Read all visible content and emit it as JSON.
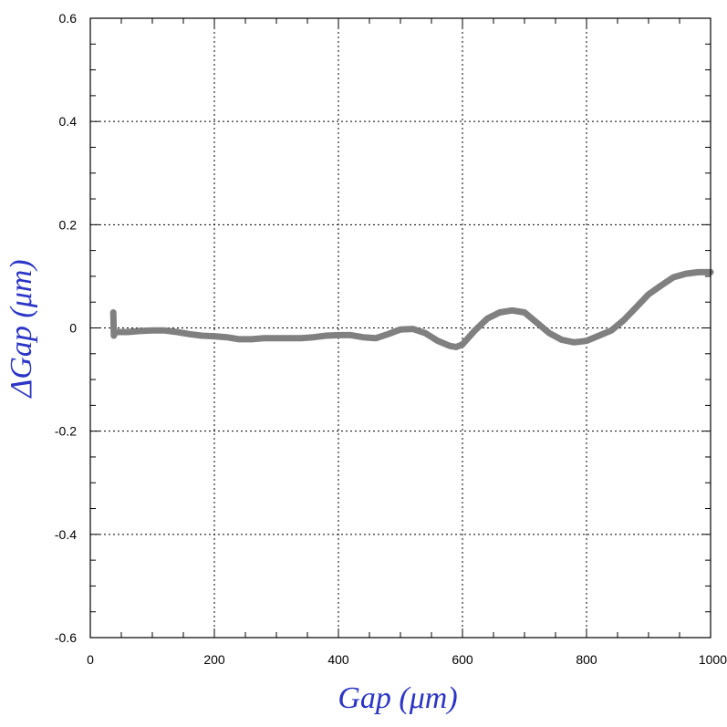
{
  "chart_data": {
    "type": "line",
    "xlabel": "Gap  (μm)",
    "ylabel": "ΔGap  (μm)",
    "xlim": [
      0,
      1000
    ],
    "ylim": [
      -0.6,
      0.6
    ],
    "xticks": [
      0,
      200,
      400,
      600,
      800,
      1000
    ],
    "yticks": [
      -0.6,
      -0.4,
      -0.2,
      0,
      0.2,
      0.4,
      0.6
    ],
    "x_tick_labels": [
      "0",
      "200",
      "400",
      "600",
      "800",
      "1000"
    ],
    "y_tick_labels": [
      "-0.6",
      "-0.4",
      "-0.2",
      "0",
      "0.2",
      "0.4",
      "0.6"
    ],
    "grid": true,
    "series": [
      {
        "color": "#808080",
        "x": [
          37,
          38,
          40,
          60,
          80,
          100,
          120,
          140,
          160,
          180,
          200,
          220,
          240,
          260,
          280,
          300,
          320,
          340,
          360,
          380,
          400,
          420,
          440,
          460,
          480,
          500,
          520,
          540,
          560,
          580,
          590,
          600,
          620,
          640,
          660,
          680,
          700,
          720,
          740,
          760,
          780,
          800,
          820,
          840,
          860,
          880,
          900,
          920,
          940,
          960,
          980,
          1000
        ],
        "y": [
          0.03,
          -0.015,
          -0.008,
          -0.008,
          -0.006,
          -0.005,
          -0.005,
          -0.008,
          -0.012,
          -0.015,
          -0.016,
          -0.018,
          -0.022,
          -0.022,
          -0.02,
          -0.02,
          -0.02,
          -0.02,
          -0.018,
          -0.015,
          -0.014,
          -0.014,
          -0.018,
          -0.02,
          -0.012,
          -0.003,
          -0.002,
          -0.01,
          -0.025,
          -0.035,
          -0.037,
          -0.032,
          -0.005,
          0.018,
          0.03,
          0.034,
          0.03,
          0.01,
          -0.01,
          -0.023,
          -0.028,
          -0.025,
          -0.015,
          -0.005,
          0.015,
          0.04,
          0.065,
          0.082,
          0.098,
          0.105,
          0.108,
          0.108
        ]
      }
    ]
  }
}
